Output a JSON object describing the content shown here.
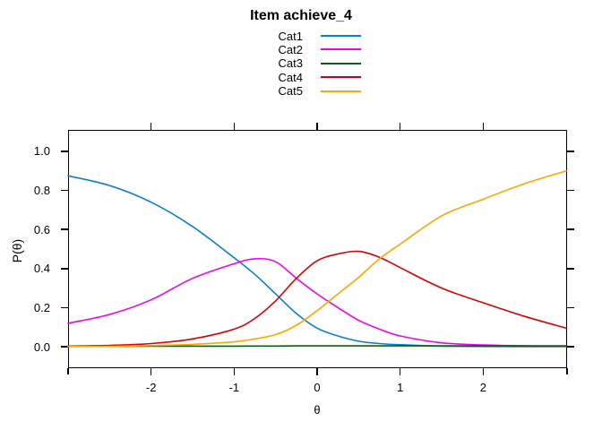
{
  "title": "Item achieve_4",
  "axes": {
    "x": {
      "label": "θ",
      "tick_labels": [
        "-2",
        "-1",
        "0",
        "1",
        "2"
      ],
      "tick_values": [
        -2,
        -1,
        0,
        1,
        2
      ],
      "range": [
        -3.0,
        3.01
      ]
    },
    "y": {
      "label": "P(θ)",
      "tick_labels": [
        "0.0",
        "0.2",
        "0.4",
        "0.6",
        "0.8",
        "1.0"
      ],
      "tick_values": [
        0.0,
        0.2,
        0.4,
        0.6,
        0.8,
        1.0
      ],
      "range": [
        -0.11,
        1.11
      ]
    }
  },
  "chart_data": {
    "type": "line",
    "title": "Item achieve_4",
    "xlabel": "θ",
    "ylabel": "P(θ)",
    "xlim": [
      -3.0,
      3.01
    ],
    "ylim": [
      -0.11,
      1.11
    ],
    "grid": false,
    "legend_position": "above-plot-center",
    "x": [
      -3,
      -2.5,
      -2,
      -1.5,
      -1,
      -0.75,
      -0.5,
      -0.25,
      0,
      0.25,
      0.5,
      0.75,
      1,
      1.5,
      2,
      2.5,
      3
    ],
    "series": [
      {
        "name": "Cat1",
        "color": "#0b7dd0",
        "values": [
          0.875,
          0.825,
          0.74,
          0.615,
          0.455,
          0.37,
          0.27,
          0.17,
          0.095,
          0.055,
          0.028,
          0.016,
          0.01,
          0.003,
          0.001,
          0.0005,
          0.0005
        ]
      },
      {
        "name": "Cat2",
        "color": "#ee00ee",
        "values": [
          0.12,
          0.165,
          0.24,
          0.35,
          0.425,
          0.45,
          0.435,
          0.35,
          0.27,
          0.2,
          0.135,
          0.09,
          0.055,
          0.02,
          0.009,
          0.004,
          0.002
        ]
      },
      {
        "name": "Cat3",
        "color": "#0a600a",
        "values": [
          0.003,
          0.003,
          0.003,
          0.003,
          0.003,
          0.0035,
          0.0035,
          0.004,
          0.004,
          0.004,
          0.004,
          0.004,
          0.004,
          0.004,
          0.004,
          0.004,
          0.004
        ]
      },
      {
        "name": "Cat4",
        "color": "#d80000",
        "values": [
          0.003,
          0.007,
          0.016,
          0.04,
          0.09,
          0.145,
          0.235,
          0.35,
          0.44,
          0.475,
          0.488,
          0.458,
          0.405,
          0.3,
          0.225,
          0.155,
          0.095
        ]
      },
      {
        "name": "Cat5",
        "color": "#ffa500",
        "values": [
          0.001,
          0.002,
          0.006,
          0.012,
          0.025,
          0.04,
          0.062,
          0.11,
          0.185,
          0.27,
          0.355,
          0.45,
          0.525,
          0.67,
          0.755,
          0.835,
          0.9
        ]
      }
    ]
  }
}
